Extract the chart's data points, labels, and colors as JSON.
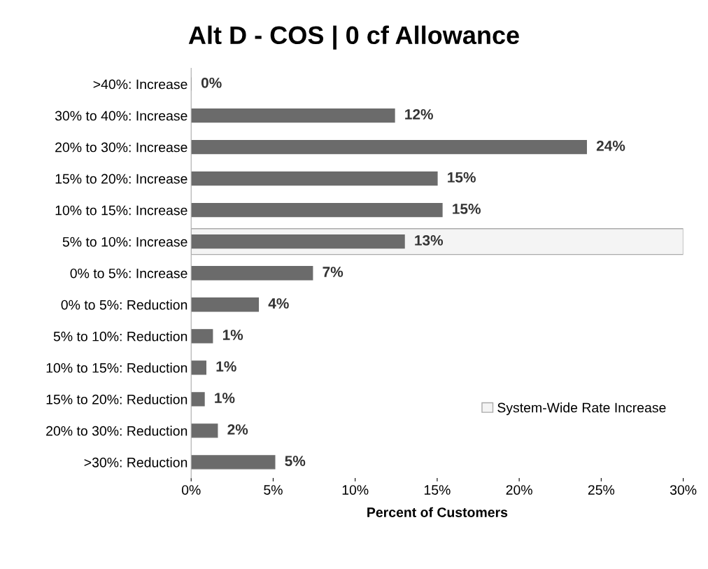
{
  "chart_data": {
    "type": "bar",
    "orientation": "horizontal",
    "title": "Alt D - COS | 0 cf Allowance",
    "xlabel": "Percent of Customers",
    "categories": [
      ">40%: Increase",
      "30% to 40%: Increase",
      "20% to 30%: Increase",
      "15% to 20%: Increase",
      "10% to 15%: Increase",
      "5% to 10%: Increase",
      "0% to 5%: Increase",
      "0% to 5%: Reduction",
      "5% to 10%: Reduction",
      "10% to 15%: Reduction",
      "15% to 20%: Reduction",
      "20% to 30%: Reduction",
      ">30%: Reduction"
    ],
    "series": [
      {
        "name": "System-Wide Rate Increase",
        "color": "#f4f4f4",
        "values": [
          null,
          null,
          null,
          null,
          null,
          30,
          null,
          null,
          null,
          null,
          null,
          null,
          null
        ]
      },
      {
        "color": "#6b6b6b",
        "values": [
          0,
          12.4,
          24.1,
          15.0,
          15.3,
          13.0,
          7.4,
          4.1,
          1.3,
          0.9,
          0.8,
          1.6,
          5.1
        ],
        "value_labels": [
          "0%",
          "12%",
          "24%",
          "15%",
          "15%",
          "13%",
          "7%",
          "4%",
          "1%",
          "1%",
          "1%",
          "2%",
          "5%"
        ]
      }
    ],
    "xlim": [
      0,
      30
    ],
    "xticks": [
      {
        "value": 0,
        "label": "0%"
      },
      {
        "value": 5,
        "label": "5%"
      },
      {
        "value": 10,
        "label": "10%"
      },
      {
        "value": 15,
        "label": "15%"
      },
      {
        "value": 20,
        "label": "20%"
      },
      {
        "value": 25,
        "label": "25%"
      },
      {
        "value": 30,
        "label": "30%"
      }
    ],
    "grid": false,
    "legend": "bottom right"
  }
}
